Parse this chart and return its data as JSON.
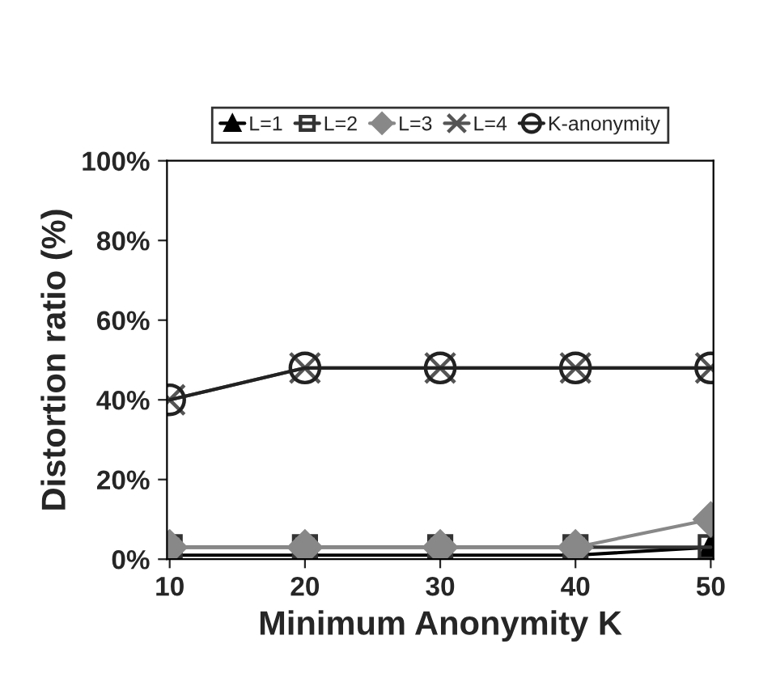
{
  "chart_data": {
    "type": "line",
    "xlabel": "Minimum Anonymity K",
    "ylabel": "Distortion ratio (%)",
    "categories": [
      "10",
      "20",
      "30",
      "40",
      "50"
    ],
    "series": [
      {
        "name": "L=1",
        "color": "#000000",
        "marker": "triangle",
        "values": [
          1,
          1,
          1,
          1,
          3
        ]
      },
      {
        "name": "L=2",
        "color": "#333333",
        "marker": "square",
        "values": [
          3,
          3,
          3,
          3,
          3
        ]
      },
      {
        "name": "L=3",
        "color": "#888888",
        "marker": "diamond",
        "values": [
          3,
          3,
          3,
          3,
          10
        ]
      },
      {
        "name": "L=4",
        "color": "#555555",
        "marker": "cross",
        "values": [
          40,
          48,
          48,
          48,
          48
        ]
      },
      {
        "name": "K-anonymity",
        "color": "#222222",
        "marker": "circle",
        "values": [
          40,
          48,
          48,
          48,
          48
        ]
      }
    ],
    "ylim": [
      0,
      100
    ],
    "yticks": [
      {
        "value": 0,
        "label": "0%"
      },
      {
        "value": 20,
        "label": "20%"
      },
      {
        "value": 40,
        "label": "40%"
      },
      {
        "value": 60,
        "label": "60%"
      },
      {
        "value": 80,
        "label": "80%"
      },
      {
        "value": 100,
        "label": "100%"
      }
    ],
    "grid": false,
    "legend": "top"
  }
}
